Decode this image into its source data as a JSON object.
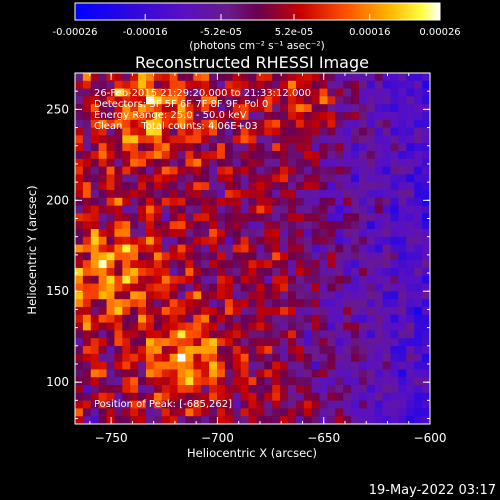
{
  "colorbar": {
    "tick_labels": [
      "-0.00026",
      "-0.00016",
      "-5.2e-05",
      "5.2e-05",
      "0.00016",
      "0.00026"
    ],
    "tick_values": [
      -0.00026,
      -0.00016,
      -5.2e-05,
      5.2e-05,
      0.00016,
      0.00026
    ],
    "units_label": "(photons cm⁻² s⁻¹ asec⁻²)",
    "range": [
      -0.00026,
      0.00026
    ],
    "colors": [
      "#0000ff",
      "#5a10c0",
      "#6a1a8a",
      "#6a0050",
      "#c80000",
      "#ff5000",
      "#ffb400",
      "#ffff40",
      "#ffffff"
    ]
  },
  "chart_data": {
    "type": "heatmap",
    "title": "Reconstructed RHESSI Image",
    "xlabel": "Heliocentric X (arcsec)",
    "ylabel": "Heliocentric Y (arcsec)",
    "xlim": [
      -767,
      -600
    ],
    "ylim": [
      77,
      270
    ],
    "x_ticks": [
      -750,
      -700,
      -650,
      -600
    ],
    "x_tick_labels": [
      "−750",
      "−700",
      "−650",
      "−600"
    ],
    "y_ticks": [
      100,
      150,
      200,
      250
    ],
    "y_tick_labels": [
      "100",
      "150",
      "200",
      "250"
    ],
    "annotations": [
      "26-Feb-2015 21:29:20.000 to 21:33:12.000",
      "Detectors: 3F 5F 6F 7F 8F 9F, Pol 0",
      "Energy Range: 25.0 - 50.0 keV",
      "Clean      Total counts: 4.06E+03"
    ],
    "peak_label": "Position of Peak: [-685,262]",
    "peak": {
      "x": -685,
      "y": 262
    },
    "value_range": [
      -0.00026,
      0.00026
    ],
    "grid": false
  },
  "footer": {
    "timestamp": "19-May-2022 03:17"
  }
}
